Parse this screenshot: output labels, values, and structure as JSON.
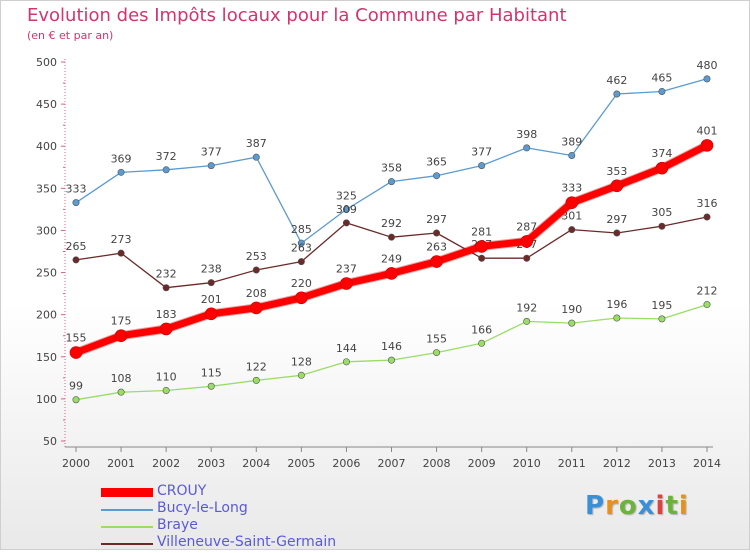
{
  "title": "Evolution des Impôts locaux pour la Commune par Habitant",
  "subtitle": "(en € et par an)",
  "logo": {
    "text": "Proxiti",
    "colors": [
      "#3a8fd6",
      "#e8901c",
      "#6bb33a",
      "#3a8fd6",
      "#e04040",
      "#6bb33a",
      "#e8901c"
    ]
  },
  "chart_data": {
    "type": "line",
    "title": "Evolution des Impôts locaux pour la Commune par Habitant",
    "subtitle": "(en € et par an)",
    "xlabel": "",
    "ylabel": "",
    "ylim": [
      50,
      500
    ],
    "yticks": [
      50,
      100,
      150,
      200,
      250,
      300,
      350,
      400,
      450,
      500
    ],
    "grid": false,
    "legend": "bottom-left",
    "x": [
      "2000",
      "2001",
      "2002",
      "2003",
      "2004",
      "2005",
      "2006",
      "2007",
      "2008",
      "2009",
      "2010",
      "2011",
      "2012",
      "2013",
      "2014"
    ],
    "series": [
      {
        "name": "CROUY",
        "color": "#ff0000",
        "values": [
          155,
          175,
          183,
          201,
          208,
          220,
          237,
          249,
          263,
          281,
          287,
          333,
          353,
          374,
          401
        ]
      },
      {
        "name": "Bucy-le-Long",
        "color": "#5b9bd0",
        "values": [
          333,
          369,
          372,
          377,
          387,
          285,
          325,
          358,
          365,
          377,
          398,
          389,
          462,
          465,
          480
        ]
      },
      {
        "name": "Braye",
        "color": "#99dd66",
        "values": [
          99,
          108,
          110,
          115,
          122,
          128,
          144,
          146,
          155,
          166,
          192,
          190,
          196,
          195,
          212
        ]
      },
      {
        "name": "Villeneuve-Saint-Germain",
        "color": "#6b2a2a",
        "values": [
          265,
          273,
          232,
          238,
          253,
          263,
          309,
          292,
          297,
          267,
          267,
          301,
          297,
          305,
          316
        ]
      }
    ],
    "point_labels": {
      "CROUY": [
        "155",
        "175",
        "183",
        "201",
        "208",
        "220",
        "237",
        "249",
        "263",
        "281",
        "287",
        "333",
        "353",
        "374",
        "401"
      ],
      "Bucy-le-Long": [
        "333",
        "369",
        "372",
        "377",
        "387",
        "285",
        "325",
        "358",
        "365",
        "377",
        "398",
        "389",
        "462",
        "465",
        "480"
      ],
      "Braye": [
        "99",
        "108",
        "110",
        "115",
        "122",
        "128",
        "144",
        "146",
        "155",
        "166",
        "192",
        "190",
        "196",
        "195",
        "212"
      ],
      "Villeneuve-Saint-Germain": [
        "265",
        "273",
        "232",
        "238",
        "253",
        "263",
        "309",
        "292",
        "297",
        "267",
        "267",
        "301",
        "297",
        "305",
        "316"
      ]
    }
  }
}
